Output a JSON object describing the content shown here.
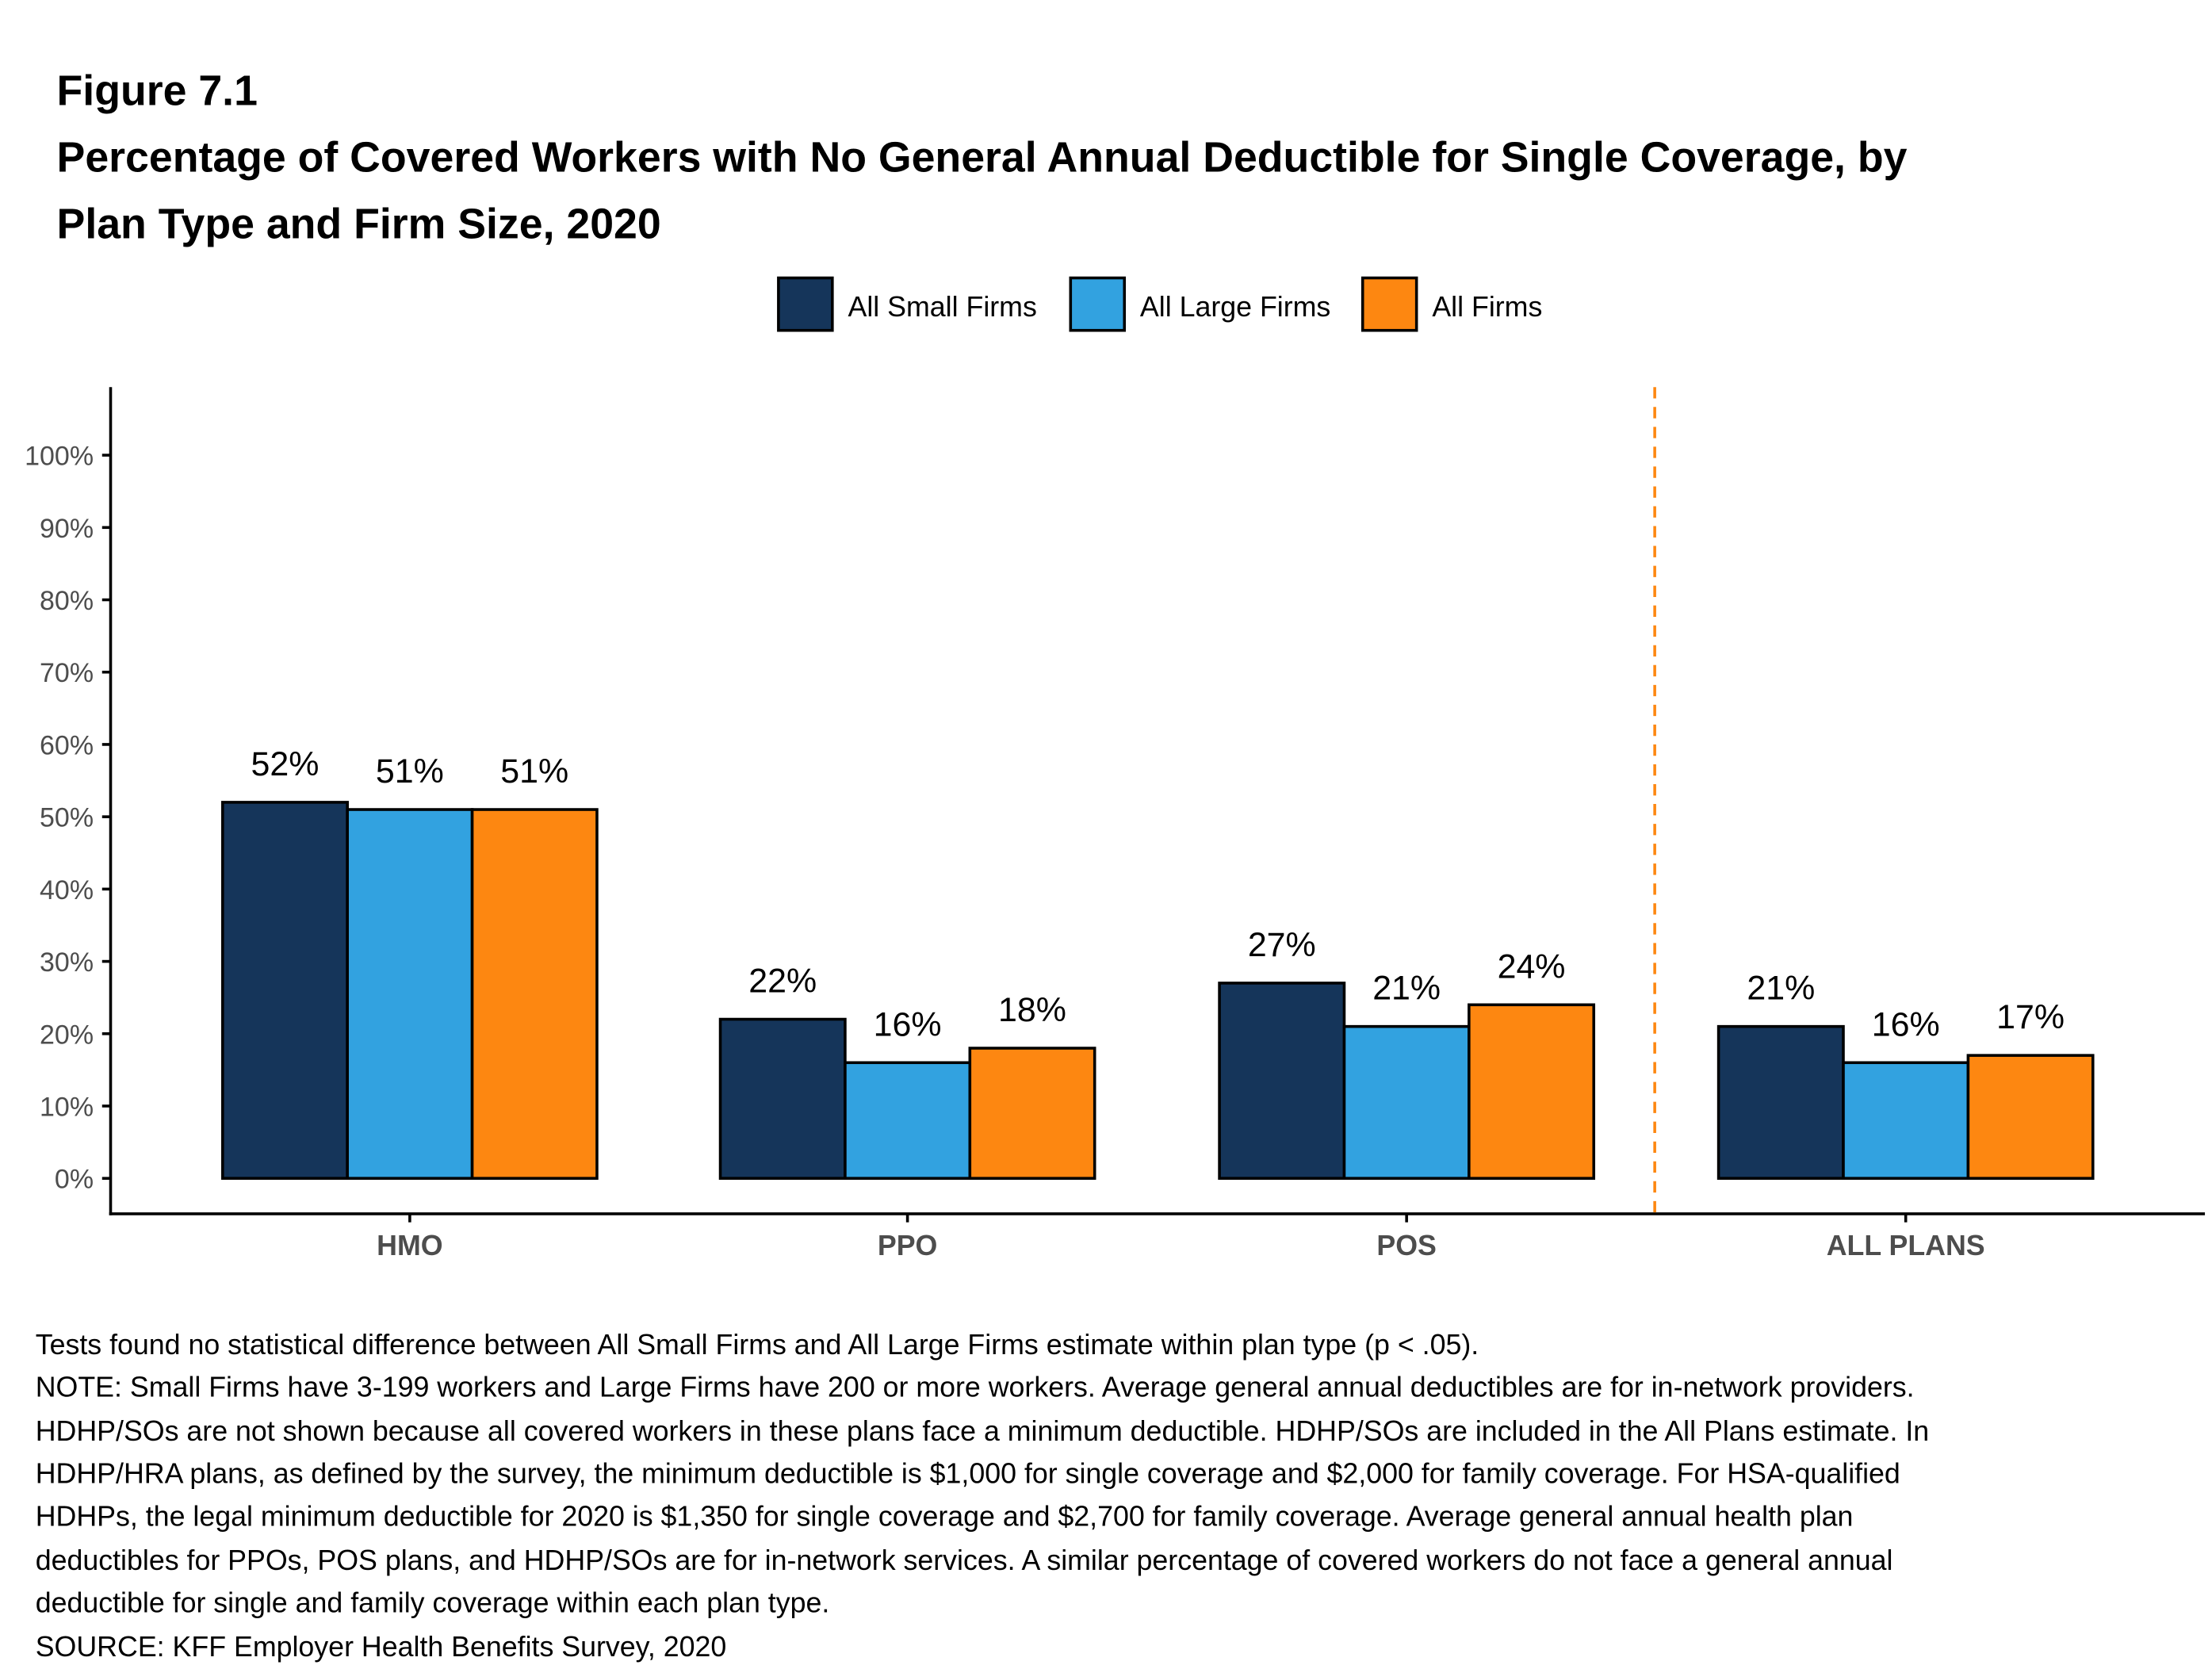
{
  "figure_label": "Figure 7.1",
  "title_lines": [
    "Percentage of Covered Workers with No General Annual Deductible for Single Coverage, by",
    "Plan Type and Firm Size, 2020"
  ],
  "chart_data": {
    "type": "bar",
    "title": "Percentage of Covered Workers with No General Annual Deductible for Single Coverage, by Plan Type and Firm Size, 2020",
    "xlabel": "",
    "ylabel": "",
    "categories": [
      "HMO",
      "PPO",
      "POS",
      "ALL PLANS"
    ],
    "series": [
      {
        "name": "All Small Firms",
        "color": "#15355a",
        "values": [
          52,
          22,
          27,
          21
        ]
      },
      {
        "name": "All Large Firms",
        "color": "#32a2e0",
        "values": [
          51,
          16,
          21,
          16
        ]
      },
      {
        "name": "All Firms",
        "color": "#fd8711",
        "values": [
          51,
          18,
          24,
          17
        ]
      }
    ],
    "data_labels": [
      [
        "52%",
        "22%",
        "27%",
        "21%"
      ],
      [
        "51%",
        "16%",
        "21%",
        "16%"
      ],
      [
        "51%",
        "18%",
        "24%",
        "17%"
      ]
    ],
    "ylim": [
      0,
      100
    ],
    "yticks": [
      0,
      10,
      20,
      30,
      40,
      50,
      60,
      70,
      80,
      90,
      100
    ],
    "ytick_labels": [
      "0%",
      "10%",
      "20%",
      "30%",
      "40%",
      "50%",
      "60%",
      "70%",
      "80%",
      "90%",
      "100%"
    ],
    "grid": false,
    "legend_position": "top-center",
    "separator": {
      "after_category": "POS",
      "style": "dashed",
      "color": "#fd8711"
    }
  },
  "notes": [
    "Tests found no statistical difference between All Small Firms and All Large Firms estimate within plan type (p < .05).",
    "NOTE: Small Firms have 3-199 workers and Large Firms have 200 or more workers. Average general annual deductibles are for in-network providers.",
    "HDHP/SOs are not shown because all covered workers in these plans face a minimum deductible. HDHP/SOs are included in the All Plans estimate. In",
    "HDHP/HRA plans, as defined by the survey, the minimum deductible is $1,000 for single coverage and $2,000 for family coverage. For HSA-qualified",
    "HDHPs, the legal minimum deductible for 2020 is $1,350 for single coverage and $2,700 for family coverage. Average general annual health plan",
    "deductibles for PPOs, POS plans, and HDHP/SOs are for in-network services. A similar percentage of covered workers do not face a general annual",
    "deductible for single and family coverage within each plan type.",
    "SOURCE: KFF Employer Health Benefits Survey, 2020"
  ]
}
